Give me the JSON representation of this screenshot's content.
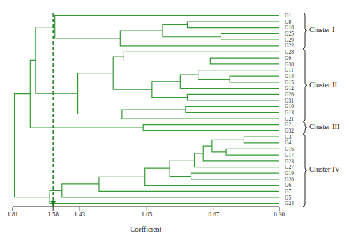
{
  "chart_data": {
    "type": "dendrogram",
    "xlabel": "Coefficient",
    "xlim": [
      1.81,
      0.3
    ],
    "xticks": [
      1.81,
      1.58,
      1.43,
      1.05,
      0.67,
      {
        "value": 0.3,
        "label": "0.30"
      }
    ],
    "color": "#339933",
    "cutoff": 1.58,
    "leaves": [
      "G1",
      "G8",
      "G18",
      "G25",
      "G29",
      "G22",
      "G28",
      "G9",
      "G30",
      "G11",
      "G14",
      "G15",
      "G12",
      "G26",
      "G31",
      "G10",
      "G13",
      "G21",
      "G2",
      "G32",
      "G3",
      "G4",
      "G16",
      "G17",
      "G23",
      "G27",
      "G19",
      "G20",
      "G6",
      "G7",
      "G5",
      "G24"
    ],
    "merges": [
      {
        "children": [
          "G25",
          "G29"
        ],
        "height": 0.63
      },
      {
        "children": [
          "G8",
          "G18"
        ],
        "height": 0.82
      },
      {
        "children": [
          1,
          0
        ],
        "height": 0.96
      },
      {
        "children": [
          2,
          "G22"
        ],
        "height": 1.2
      },
      {
        "children": [
          "G1",
          3
        ],
        "height": 1.57
      },
      {
        "children": [
          "G9",
          "G30"
        ],
        "height": 0.69
      },
      {
        "children": [
          "G28",
          5
        ],
        "height": 1.18
      },
      {
        "children": [
          "G14",
          "G15"
        ],
        "height": 0.58
      },
      {
        "children": [
          "G11",
          7
        ],
        "height": 0.76
      },
      {
        "children": [
          8,
          "G12"
        ],
        "height": 0.86
      },
      {
        "children": [
          "G26",
          "G31"
        ],
        "height": 0.82
      },
      {
        "children": [
          9,
          10
        ],
        "height": 1.02
      },
      {
        "children": [
          6,
          11
        ],
        "height": 1.24
      },
      {
        "children": [
          "G10",
          "G13"
        ],
        "height": 0.83
      },
      {
        "children": [
          13,
          "G21"
        ],
        "height": 1.19
      },
      {
        "children": [
          12,
          14
        ],
        "height": 1.44
      },
      {
        "children": [
          "G2",
          "G32"
        ],
        "height": 1.07
      },
      {
        "children": [
          4,
          15
        ],
        "height": 1.68
      },
      {
        "children": [
          17,
          16
        ],
        "height": 1.71
      },
      {
        "children": [
          "G3",
          "G4"
        ],
        "height": 0.5
      },
      {
        "children": [
          "G16",
          "G17"
        ],
        "height": 0.6
      },
      {
        "children": [
          19,
          20
        ],
        "height": 0.68
      },
      {
        "children": [
          21,
          "G23"
        ],
        "height": 0.73
      },
      {
        "children": [
          22,
          "G27"
        ],
        "height": 0.78
      },
      {
        "children": [
          "G19",
          "G20"
        ],
        "height": 0.8
      },
      {
        "children": [
          23,
          24
        ],
        "height": 0.92
      },
      {
        "children": [
          25,
          "G6"
        ],
        "height": 1.06
      },
      {
        "children": [
          26,
          "G7"
        ],
        "height": 1.32
      },
      {
        "children": [
          27,
          "G5"
        ],
        "height": 1.53
      },
      {
        "children": [
          28,
          "G24"
        ],
        "height": 1.6
      },
      {
        "children": [
          18,
          29
        ],
        "height": 1.8
      }
    ],
    "clusters": [
      {
        "label": "Cluster I",
        "first": "G1",
        "last": "G22"
      },
      {
        "label": "Cluster II",
        "first": "G28",
        "last": "G21"
      },
      {
        "label": "Cluster III",
        "first": "G2",
        "last": "G32"
      },
      {
        "label": "Cluster IV",
        "first": "G3",
        "last": "G24"
      }
    ]
  }
}
